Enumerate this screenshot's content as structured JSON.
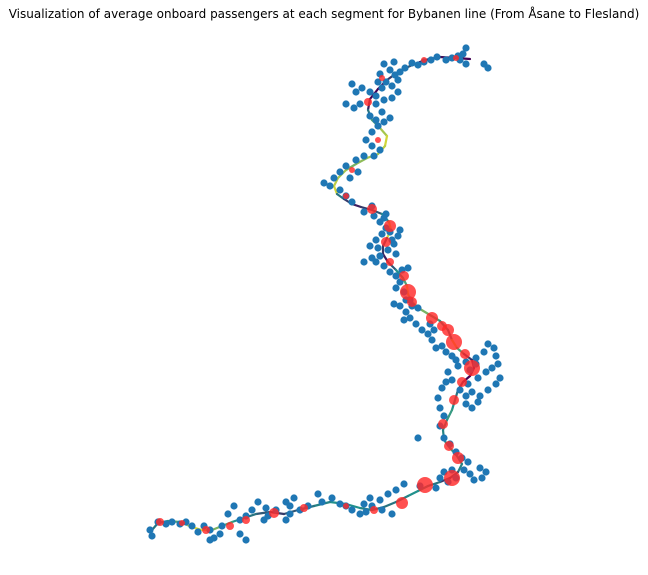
{
  "title": "Visualization of average onboard passengers at each segment for Bybanen line (From Åsane to Flesland)",
  "colors": {
    "stop_points": "#1f77b4",
    "stations": "#ff2a2a",
    "segment_low": "#440154",
    "segment_mid": "#21918c",
    "segment_high": "#fde725",
    "background": "#ffffff"
  },
  "chart_data": {
    "type": "scatter",
    "description_of_encoding": "",
    "series": [
      {
        "name": "",
        "kind": "route-segments"
      },
      {
        "name": "",
        "kind": "stop-points"
      },
      {
        "name": "",
        "kind": "stations"
      }
    ],
    "grid": false,
    "axes_visible": false
  }
}
